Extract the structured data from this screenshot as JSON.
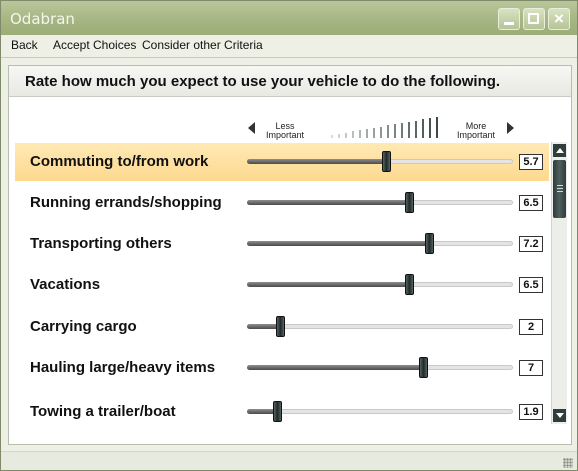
{
  "window": {
    "title": "Odabran"
  },
  "menu": {
    "items": [
      "Back",
      "Accept Choices",
      "Consider other Criteria"
    ]
  },
  "heading": "Rate how much you expect to use your vehicle to do the following.",
  "scale": {
    "left_label_1": "Less",
    "left_label_2": "Important",
    "right_label_1": "More",
    "right_label_2": "Important",
    "min": 1,
    "max": 10
  },
  "criteria": [
    {
      "label": "Commuting to/from work",
      "value": "5.7",
      "level": 5.7,
      "selected": true
    },
    {
      "label": "Running errands/shopping",
      "value": "6.5",
      "level": 6.5,
      "selected": false
    },
    {
      "label": "Transporting others",
      "value": "7.2",
      "level": 7.2,
      "selected": false
    },
    {
      "label": "Vacations",
      "value": "6.5",
      "level": 6.5,
      "selected": false
    },
    {
      "label": "Carrying cargo",
      "value": "2",
      "level": 2,
      "selected": false
    },
    {
      "label": "Hauling large/heavy items",
      "value": "7",
      "level": 7,
      "selected": false
    },
    {
      "label": "Towing a trailer/boat",
      "value": "1.9",
      "level": 1.9,
      "selected": false
    }
  ],
  "icons": {
    "minimize": "minimize-icon",
    "maximize": "maximize-icon",
    "close": "close-icon",
    "scroll_up": "chevron-up-icon",
    "scroll_down": "chevron-down-icon",
    "resize": "resize-grip-icon"
  },
  "colors": {
    "titlebar": "#a7b785",
    "selected_row": "#fdd98f"
  }
}
